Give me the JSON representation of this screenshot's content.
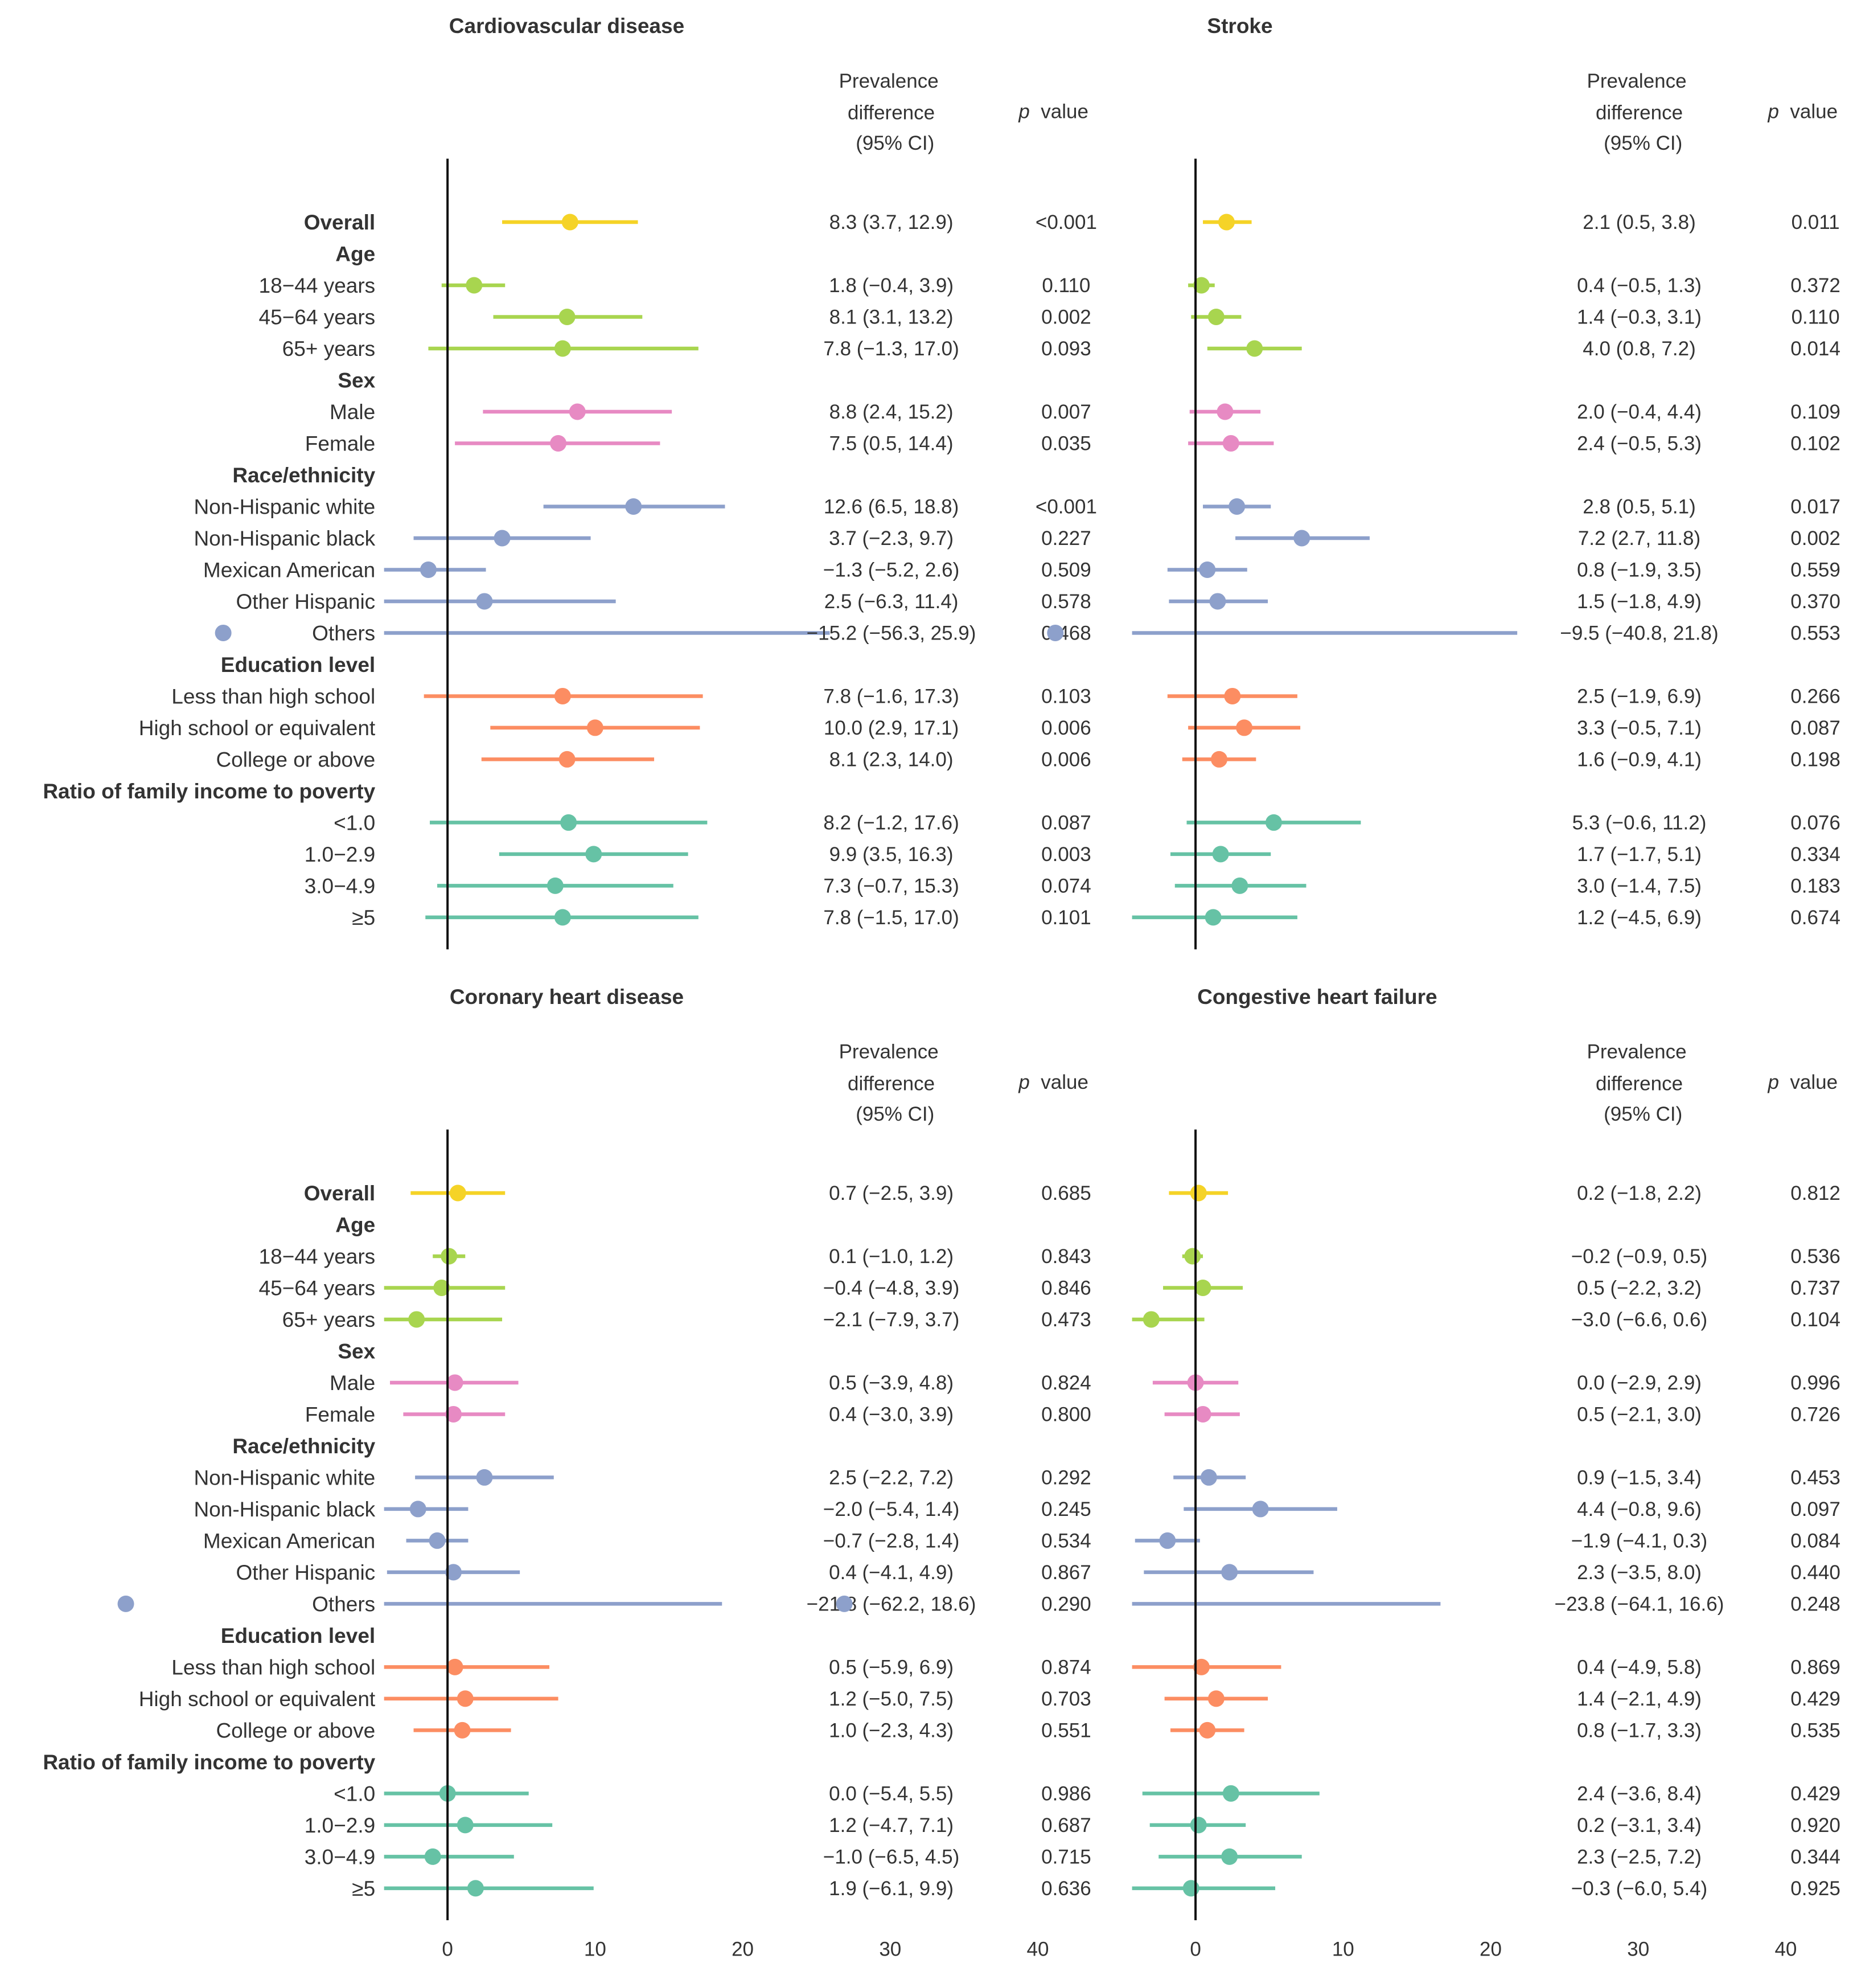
{
  "chart_data": {
    "type": "forest",
    "header": {
      "pd_line1": "Prevalence",
      "pd_line2": "difference",
      "pd_line3": "(95% CI)",
      "p_label": "p",
      "p_value_word": "value"
    },
    "x_ticks": [
      "0",
      "10",
      "20",
      "30",
      "40"
    ],
    "xlim": [
      -4.3,
      40
    ],
    "tick_values": [
      0,
      10,
      20,
      30,
      40
    ],
    "rows": [
      {
        "label": "Overall",
        "bold": true,
        "group": "overall"
      },
      {
        "label": "Age",
        "bold": true,
        "group": "heading"
      },
      {
        "label": "18−44 years",
        "bold": false,
        "group": "age"
      },
      {
        "label": "45−64 years",
        "bold": false,
        "group": "age"
      },
      {
        "label": "65+ years",
        "bold": false,
        "group": "age"
      },
      {
        "label": "Sex",
        "bold": true,
        "group": "heading"
      },
      {
        "label": "Male",
        "bold": false,
        "group": "sex"
      },
      {
        "label": "Female",
        "bold": false,
        "group": "sex"
      },
      {
        "label": "Race/ethnicity",
        "bold": true,
        "group": "heading"
      },
      {
        "label": "Non-Hispanic white",
        "bold": false,
        "group": "race"
      },
      {
        "label": "Non-Hispanic black",
        "bold": false,
        "group": "race"
      },
      {
        "label": "Mexican American",
        "bold": false,
        "group": "race"
      },
      {
        "label": "Other Hispanic",
        "bold": false,
        "group": "race"
      },
      {
        "label": "Others",
        "bold": false,
        "group": "race"
      },
      {
        "label": "Education level",
        "bold": true,
        "group": "heading"
      },
      {
        "label": "Less than high school",
        "bold": false,
        "group": "edu"
      },
      {
        "label": "High school or equivalent",
        "bold": false,
        "group": "edu"
      },
      {
        "label": "College or above",
        "bold": false,
        "group": "edu"
      },
      {
        "label": "Ratio of family income to poverty",
        "bold": true,
        "group": "heading"
      },
      {
        "label": "<1.0",
        "bold": false,
        "group": "income"
      },
      {
        "label": "1.0−2.9",
        "bold": false,
        "group": "income"
      },
      {
        "label": "3.0−4.9",
        "bold": false,
        "group": "income"
      },
      {
        "label": "≥5",
        "bold": false,
        "group": "income"
      }
    ],
    "colors": {
      "overall": "#f5d327",
      "age": "#a8d54f",
      "sex": "#e78ac3",
      "race": "#8da0cb",
      "edu": "#fc8d62",
      "income": "#66c2a5",
      "axis": "#111111",
      "text": "#333333"
    },
    "panels": [
      {
        "title": "Cardiovascular disease",
        "series": [
          {
            "est": 8.3,
            "lo": 3.7,
            "hi": 12.9,
            "ci_text": "8.3 (3.7, 12.9)",
            "p": "<0.001"
          },
          null,
          {
            "est": 1.8,
            "lo": -0.4,
            "hi": 3.9,
            "ci_text": "1.8 (−0.4, 3.9)",
            "p": "0.110"
          },
          {
            "est": 8.1,
            "lo": 3.1,
            "hi": 13.2,
            "ci_text": "8.1 (3.1, 13.2)",
            "p": "0.002"
          },
          {
            "est": 7.8,
            "lo": -1.3,
            "hi": 17.0,
            "ci_text": "7.8 (−1.3, 17.0)",
            "p": "0.093"
          },
          null,
          {
            "est": 8.8,
            "lo": 2.4,
            "hi": 15.2,
            "ci_text": "8.8 (2.4, 15.2)",
            "p": "0.007"
          },
          {
            "est": 7.5,
            "lo": 0.5,
            "hi": 14.4,
            "ci_text": "7.5 (0.5, 14.4)",
            "p": "0.035"
          },
          null,
          {
            "est": 12.6,
            "lo": 6.5,
            "hi": 18.8,
            "ci_text": "12.6 (6.5, 18.8)",
            "p": "<0.001"
          },
          {
            "est": 3.7,
            "lo": -2.3,
            "hi": 9.7,
            "ci_text": "3.7 (−2.3, 9.7)",
            "p": "0.227"
          },
          {
            "est": -1.3,
            "lo": -5.2,
            "hi": 2.6,
            "ci_text": "−1.3 (−5.2, 2.6)",
            "p": "0.509"
          },
          {
            "est": 2.5,
            "lo": -6.3,
            "hi": 11.4,
            "ci_text": "2.5 (−6.3, 11.4)",
            "p": "0.578"
          },
          {
            "est": -15.2,
            "lo": -56.3,
            "hi": 25.9,
            "ci_text": "−15.2 (−56.3, 25.9)",
            "p": "0.468"
          },
          null,
          {
            "est": 7.8,
            "lo": -1.6,
            "hi": 17.3,
            "ci_text": "7.8 (−1.6, 17.3)",
            "p": "0.103"
          },
          {
            "est": 10.0,
            "lo": 2.9,
            "hi": 17.1,
            "ci_text": "10.0 (2.9, 17.1)",
            "p": "0.006"
          },
          {
            "est": 8.1,
            "lo": 2.3,
            "hi": 14.0,
            "ci_text": "8.1 (2.3, 14.0)",
            "p": "0.006"
          },
          null,
          {
            "est": 8.2,
            "lo": -1.2,
            "hi": 17.6,
            "ci_text": "8.2 (−1.2, 17.6)",
            "p": "0.087"
          },
          {
            "est": 9.9,
            "lo": 3.5,
            "hi": 16.3,
            "ci_text": "9.9 (3.5, 16.3)",
            "p": "0.003"
          },
          {
            "est": 7.3,
            "lo": -0.7,
            "hi": 15.3,
            "ci_text": "7.3 (−0.7, 15.3)",
            "p": "0.074"
          },
          {
            "est": 7.8,
            "lo": -1.5,
            "hi": 17.0,
            "ci_text": "7.8 (−1.5, 17.0)",
            "p": "0.101"
          }
        ]
      },
      {
        "title": "Stroke",
        "series": [
          {
            "est": 2.1,
            "lo": 0.5,
            "hi": 3.8,
            "ci_text": "2.1 (0.5, 3.8)",
            "p": "0.011"
          },
          null,
          {
            "est": 0.4,
            "lo": -0.5,
            "hi": 1.3,
            "ci_text": "0.4 (−0.5, 1.3)",
            "p": "0.372"
          },
          {
            "est": 1.4,
            "lo": -0.3,
            "hi": 3.1,
            "ci_text": "1.4 (−0.3, 3.1)",
            "p": "0.110"
          },
          {
            "est": 4.0,
            "lo": 0.8,
            "hi": 7.2,
            "ci_text": "4.0 (0.8, 7.2)",
            "p": "0.014"
          },
          null,
          {
            "est": 2.0,
            "lo": -0.4,
            "hi": 4.4,
            "ci_text": "2.0 (−0.4, 4.4)",
            "p": "0.109"
          },
          {
            "est": 2.4,
            "lo": -0.5,
            "hi": 5.3,
            "ci_text": "2.4 (−0.5, 5.3)",
            "p": "0.102"
          },
          null,
          {
            "est": 2.8,
            "lo": 0.5,
            "hi": 5.1,
            "ci_text": "2.8 (0.5, 5.1)",
            "p": "0.017"
          },
          {
            "est": 7.2,
            "lo": 2.7,
            "hi": 11.8,
            "ci_text": "7.2 (2.7, 11.8)",
            "p": "0.002"
          },
          {
            "est": 0.8,
            "lo": -1.9,
            "hi": 3.5,
            "ci_text": "0.8 (−1.9, 3.5)",
            "p": "0.559"
          },
          {
            "est": 1.5,
            "lo": -1.8,
            "hi": 4.9,
            "ci_text": "1.5 (−1.8, 4.9)",
            "p": "0.370"
          },
          {
            "est": -9.5,
            "lo": -40.8,
            "hi": 21.8,
            "ci_text": "−9.5 (−40.8, 21.8)",
            "p": "0.553"
          },
          null,
          {
            "est": 2.5,
            "lo": -1.9,
            "hi": 6.9,
            "ci_text": "2.5 (−1.9, 6.9)",
            "p": "0.266"
          },
          {
            "est": 3.3,
            "lo": -0.5,
            "hi": 7.1,
            "ci_text": "3.3 (−0.5, 7.1)",
            "p": "0.087"
          },
          {
            "est": 1.6,
            "lo": -0.9,
            "hi": 4.1,
            "ci_text": "1.6 (−0.9, 4.1)",
            "p": "0.198"
          },
          null,
          {
            "est": 5.3,
            "lo": -0.6,
            "hi": 11.2,
            "ci_text": "5.3 (−0.6, 11.2)",
            "p": "0.076"
          },
          {
            "est": 1.7,
            "lo": -1.7,
            "hi": 5.1,
            "ci_text": "1.7 (−1.7, 5.1)",
            "p": "0.334"
          },
          {
            "est": 3.0,
            "lo": -1.4,
            "hi": 7.5,
            "ci_text": "3.0 (−1.4, 7.5)",
            "p": "0.183"
          },
          {
            "est": 1.2,
            "lo": -4.5,
            "hi": 6.9,
            "ci_text": "1.2 (−4.5, 6.9)",
            "p": "0.674"
          }
        ]
      },
      {
        "title": "Coronary heart disease",
        "series": [
          {
            "est": 0.7,
            "lo": -2.5,
            "hi": 3.9,
            "ci_text": "0.7 (−2.5, 3.9)",
            "p": "0.685"
          },
          null,
          {
            "est": 0.1,
            "lo": -1.0,
            "hi": 1.2,
            "ci_text": "0.1 (−1.0, 1.2)",
            "p": "0.843"
          },
          {
            "est": -0.4,
            "lo": -4.8,
            "hi": 3.9,
            "ci_text": "−0.4 (−4.8, 3.9)",
            "p": "0.846"
          },
          {
            "est": -2.1,
            "lo": -7.9,
            "hi": 3.7,
            "ci_text": "−2.1 (−7.9, 3.7)",
            "p": "0.473"
          },
          null,
          {
            "est": 0.5,
            "lo": -3.9,
            "hi": 4.8,
            "ci_text": "0.5 (−3.9, 4.8)",
            "p": "0.824"
          },
          {
            "est": 0.4,
            "lo": -3.0,
            "hi": 3.9,
            "ci_text": "0.4 (−3.0, 3.9)",
            "p": "0.800"
          },
          null,
          {
            "est": 2.5,
            "lo": -2.2,
            "hi": 7.2,
            "ci_text": "2.5 (−2.2, 7.2)",
            "p": "0.292"
          },
          {
            "est": -2.0,
            "lo": -5.4,
            "hi": 1.4,
            "ci_text": "−2.0 (−5.4, 1.4)",
            "p": "0.245"
          },
          {
            "est": -0.7,
            "lo": -2.8,
            "hi": 1.4,
            "ci_text": "−0.7 (−2.8, 1.4)",
            "p": "0.534"
          },
          {
            "est": 0.4,
            "lo": -4.1,
            "hi": 4.9,
            "ci_text": "0.4 (−4.1, 4.9)",
            "p": "0.867"
          },
          {
            "est": -21.8,
            "lo": -62.2,
            "hi": 18.6,
            "ci_text": "−21.8 (−62.2, 18.6)",
            "p": "0.290"
          },
          null,
          {
            "est": 0.5,
            "lo": -5.9,
            "hi": 6.9,
            "ci_text": "0.5 (−5.9, 6.9)",
            "p": "0.874"
          },
          {
            "est": 1.2,
            "lo": -5.0,
            "hi": 7.5,
            "ci_text": "1.2 (−5.0, 7.5)",
            "p": "0.703"
          },
          {
            "est": 1.0,
            "lo": -2.3,
            "hi": 4.3,
            "ci_text": "1.0 (−2.3, 4.3)",
            "p": "0.551"
          },
          null,
          {
            "est": 0.0,
            "lo": -5.4,
            "hi": 5.5,
            "ci_text": "0.0 (−5.4, 5.5)",
            "p": "0.986"
          },
          {
            "est": 1.2,
            "lo": -4.7,
            "hi": 7.1,
            "ci_text": "1.2 (−4.7, 7.1)",
            "p": "0.687"
          },
          {
            "est": -1.0,
            "lo": -6.5,
            "hi": 4.5,
            "ci_text": "−1.0 (−6.5, 4.5)",
            "p": "0.715"
          },
          {
            "est": 1.9,
            "lo": -6.1,
            "hi": 9.9,
            "ci_text": "1.9 (−6.1, 9.9)",
            "p": "0.636"
          }
        ]
      },
      {
        "title": "Congestive heart failure",
        "series": [
          {
            "est": 0.2,
            "lo": -1.8,
            "hi": 2.2,
            "ci_text": "0.2 (−1.8, 2.2)",
            "p": "0.812"
          },
          null,
          {
            "est": -0.2,
            "lo": -0.9,
            "hi": 0.5,
            "ci_text": "−0.2 (−0.9, 0.5)",
            "p": "0.536"
          },
          {
            "est": 0.5,
            "lo": -2.2,
            "hi": 3.2,
            "ci_text": "0.5 (−2.2, 3.2)",
            "p": "0.737"
          },
          {
            "est": -3.0,
            "lo": -6.6,
            "hi": 0.6,
            "ci_text": "−3.0 (−6.6, 0.6)",
            "p": "0.104"
          },
          null,
          {
            "est": 0.0,
            "lo": -2.9,
            "hi": 2.9,
            "ci_text": "0.0 (−2.9, 2.9)",
            "p": "0.996"
          },
          {
            "est": 0.5,
            "lo": -2.1,
            "hi": 3.0,
            "ci_text": "0.5 (−2.1, 3.0)",
            "p": "0.726"
          },
          null,
          {
            "est": 0.9,
            "lo": -1.5,
            "hi": 3.4,
            "ci_text": "0.9 (−1.5, 3.4)",
            "p": "0.453"
          },
          {
            "est": 4.4,
            "lo": -0.8,
            "hi": 9.6,
            "ci_text": "4.4 (−0.8, 9.6)",
            "p": "0.097"
          },
          {
            "est": -1.9,
            "lo": -4.1,
            "hi": 0.3,
            "ci_text": "−1.9 (−4.1, 0.3)",
            "p": "0.084"
          },
          {
            "est": 2.3,
            "lo": -3.5,
            "hi": 8.0,
            "ci_text": "2.3 (−3.5, 8.0)",
            "p": "0.440"
          },
          {
            "est": -23.8,
            "lo": -64.1,
            "hi": 16.6,
            "ci_text": "−23.8 (−64.1, 16.6)",
            "p": "0.248"
          },
          null,
          {
            "est": 0.4,
            "lo": -4.9,
            "hi": 5.8,
            "ci_text": "0.4 (−4.9, 5.8)",
            "p": "0.869"
          },
          {
            "est": 1.4,
            "lo": -2.1,
            "hi": 4.9,
            "ci_text": "1.4 (−2.1, 4.9)",
            "p": "0.429"
          },
          {
            "est": 0.8,
            "lo": -1.7,
            "hi": 3.3,
            "ci_text": "0.8 (−1.7, 3.3)",
            "p": "0.535"
          },
          null,
          {
            "est": 2.4,
            "lo": -3.6,
            "hi": 8.4,
            "ci_text": "2.4 (−3.6, 8.4)",
            "p": "0.429"
          },
          {
            "est": 0.2,
            "lo": -3.1,
            "hi": 3.4,
            "ci_text": "0.2 (−3.1, 3.4)",
            "p": "0.920"
          },
          {
            "est": 2.3,
            "lo": -2.5,
            "hi": 7.2,
            "ci_text": "2.3 (−2.5, 7.2)",
            "p": "0.344"
          },
          {
            "est": -0.3,
            "lo": -6.0,
            "hi": 5.4,
            "ci_text": "−0.3 (−6.0, 5.4)",
            "p": "0.925"
          }
        ]
      }
    ]
  }
}
